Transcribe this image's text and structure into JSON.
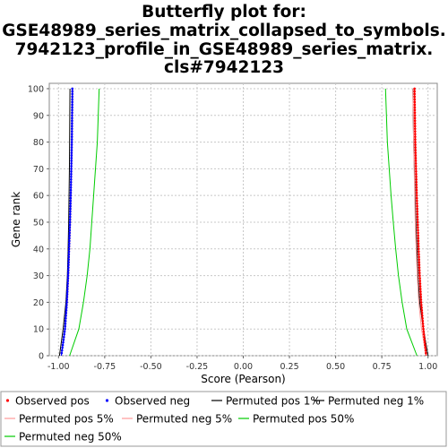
{
  "chart_data": {
    "type": "line",
    "title_lines": [
      "Butterfly plot for:",
      "GSE48989_series_matrix_collapsed_to_symbols.",
      "7942123_profile_in_GSE48989_series_matrix.",
      "cls#7942123"
    ],
    "xlabel": "Score (Pearson)",
    "ylabel": "Gene rank",
    "xlim": [
      -1.05,
      1.05
    ],
    "ylim": [
      0,
      102
    ],
    "x_ticks": [
      -1.0,
      -0.75,
      -0.5,
      -0.25,
      0.0,
      0.25,
      0.5,
      0.75,
      1.0
    ],
    "x_tick_labels": [
      "-1.00",
      "-0.75",
      "-0.50",
      "-0.25",
      "0.00",
      "0.25",
      "0.50",
      "0.75",
      "1.00"
    ],
    "y_ticks": [
      0,
      10,
      20,
      30,
      40,
      50,
      60,
      70,
      80,
      90,
      100
    ],
    "y_tick_labels": [
      "0",
      "10",
      "20",
      "30",
      "40",
      "50",
      "60",
      "70",
      "80",
      "90",
      "100"
    ],
    "grid": true,
    "legend_position": "bottom",
    "series": [
      {
        "name": "Observed pos",
        "color": "#ff0000",
        "style": "points",
        "x": [
          0.99,
          0.975,
          0.963,
          0.955,
          0.949,
          0.944,
          0.939,
          0.935,
          0.931,
          0.927
        ],
        "y": [
          0,
          10,
          20,
          30,
          40,
          50,
          60,
          70,
          80,
          100
        ]
      },
      {
        "name": "Observed neg",
        "color": "#0000ff",
        "style": "points",
        "x": [
          -0.985,
          -0.965,
          -0.955,
          -0.948,
          -0.943,
          -0.938,
          -0.934,
          -0.931,
          -0.928,
          -0.925
        ],
        "y": [
          0,
          10,
          20,
          30,
          40,
          50,
          60,
          70,
          80,
          100
        ]
      },
      {
        "name": "Permuted pos 1%",
        "color": "#000000",
        "style": "line",
        "x": [
          1.0,
          0.975,
          0.955,
          0.945,
          0.94,
          0.934,
          0.93,
          0.926,
          0.922,
          0.918
        ],
        "y": [
          0,
          10,
          20,
          30,
          40,
          50,
          60,
          70,
          80,
          100
        ]
      },
      {
        "name": "Permuted neg 1%",
        "color": "#000000",
        "style": "line",
        "x": [
          -0.995,
          -0.975,
          -0.96,
          -0.952,
          -0.948,
          -0.945,
          -0.943,
          -0.941,
          -0.94,
          -0.938
        ],
        "y": [
          0,
          10,
          20,
          30,
          40,
          50,
          60,
          70,
          80,
          100
        ]
      },
      {
        "name": "Permuted pos 5%",
        "color": "#ff9999",
        "style": "line",
        "x": [
          0.99,
          0.965,
          0.95,
          0.942,
          0.936,
          0.931,
          0.928,
          0.925,
          0.922,
          0.918
        ],
        "y": [
          0,
          10,
          20,
          30,
          40,
          50,
          60,
          70,
          80,
          100
        ]
      },
      {
        "name": "Permuted neg 5%",
        "color": "#ff9999",
        "style": "line",
        "x": [
          -0.985,
          -0.965,
          -0.952,
          -0.945,
          -0.94,
          -0.935,
          -0.932,
          -0.929,
          -0.926,
          -0.923
        ],
        "y": [
          0,
          10,
          20,
          30,
          40,
          50,
          60,
          70,
          80,
          100
        ]
      },
      {
        "name": "Permuted pos 50%",
        "color": "#00cc00",
        "style": "line",
        "x": [
          0.94,
          0.885,
          0.86,
          0.84,
          0.825,
          0.812,
          0.8,
          0.79,
          0.78,
          0.77
        ],
        "y": [
          0,
          10,
          20,
          30,
          40,
          50,
          60,
          70,
          80,
          100
        ]
      },
      {
        "name": "Permuted neg 50%",
        "color": "#00cc00",
        "style": "line",
        "x": [
          -0.94,
          -0.89,
          -0.865,
          -0.845,
          -0.83,
          -0.82,
          -0.81,
          -0.8,
          -0.79,
          -0.78
        ],
        "y": [
          0,
          10,
          20,
          30,
          40,
          50,
          60,
          70,
          80,
          100
        ]
      }
    ]
  }
}
